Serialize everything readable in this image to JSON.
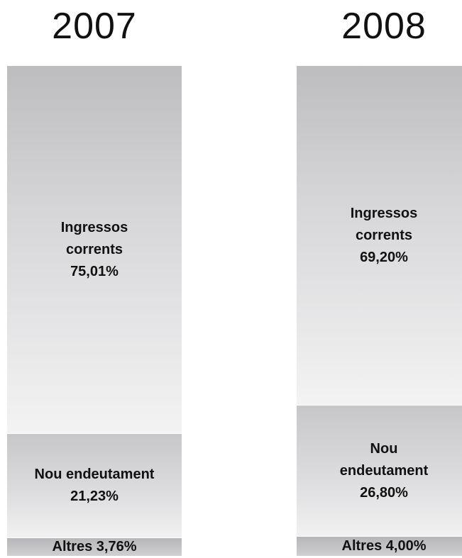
{
  "chart_data": {
    "type": "bar",
    "stacked": true,
    "percent": true,
    "categories": [
      "2007",
      "2008"
    ],
    "series": [
      {
        "name": "Ingressos corrents",
        "labels": [
          "Ingressos\ncorrents\n75,01%",
          "Ingressos\ncorrents\n69,20%"
        ],
        "values": [
          75.01,
          69.2
        ],
        "color": "#d6d6d8"
      },
      {
        "name": "Nou endeutament",
        "labels": [
          "Nou endeutament\n21,23%",
          "Nou\nendeutament\n26,80%"
        ],
        "values": [
          21.23,
          26.8
        ],
        "color": "#dcdcde"
      },
      {
        "name": "Altres",
        "labels": [
          "Altres 3,76%",
          "Altres 4,00%"
        ],
        "values": [
          3.76,
          4.0
        ],
        "color": "#c4c4c6"
      }
    ],
    "title": "",
    "xlabel": "",
    "ylabel": "",
    "ylim": [
      0,
      100
    ],
    "grid": false,
    "legend": "none"
  }
}
